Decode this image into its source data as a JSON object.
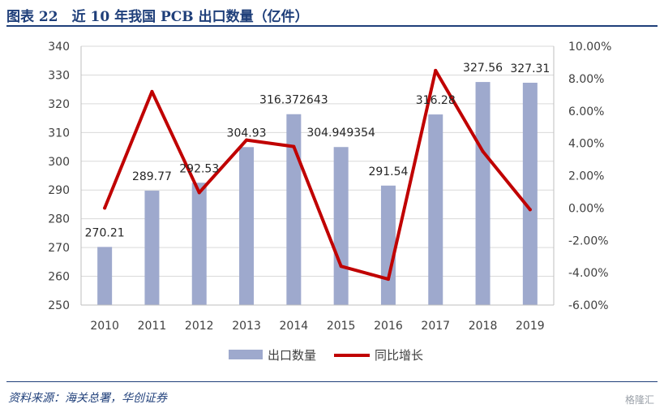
{
  "figure_title": "图表 22　近 10 年我国 PCB 出口数量（亿件）",
  "source": "资料来源：海关总署，华创证券",
  "watermark": "格隆汇",
  "colors": {
    "bar": "#9ea9cd",
    "line": "#c00000",
    "grid": "#d9d9d9",
    "text": "#404040",
    "title": "#1f3f7a"
  },
  "chart_data": {
    "type": "bar+line",
    "categories": [
      "2010",
      "2011",
      "2012",
      "2013",
      "2014",
      "2015",
      "2016",
      "2017",
      "2018",
      "2019"
    ],
    "series": [
      {
        "name": "出口数量",
        "type": "bar",
        "axis": "left",
        "values": [
          270.21,
          289.77,
          292.53,
          304.93,
          316.372643,
          304.949354,
          291.54,
          316.28,
          327.56,
          327.31
        ],
        "labels": [
          "270.21",
          "289.77",
          "292.53",
          "304.93",
          "316.372643",
          "304.949354",
          "291.54",
          "316.28",
          "327.56",
          "327.31"
        ]
      },
      {
        "name": "同比增长",
        "type": "line",
        "axis": "right",
        "values": [
          0.0,
          7.2,
          0.95,
          4.2,
          3.8,
          -3.6,
          -4.4,
          8.5,
          3.5,
          -0.1
        ]
      }
    ],
    "y_left": {
      "min": 250,
      "max": 340,
      "ticks": [
        "250",
        "260",
        "270",
        "280",
        "290",
        "300",
        "310",
        "320",
        "330",
        "340"
      ]
    },
    "y_right": {
      "min": -6,
      "max": 10,
      "ticks": [
        "-6.00%",
        "-4.00%",
        "-2.00%",
        "0.00%",
        "2.00%",
        "4.00%",
        "6.00%",
        "8.00%",
        "10.00%"
      ]
    },
    "grid": true,
    "legend_position": "bottom"
  }
}
